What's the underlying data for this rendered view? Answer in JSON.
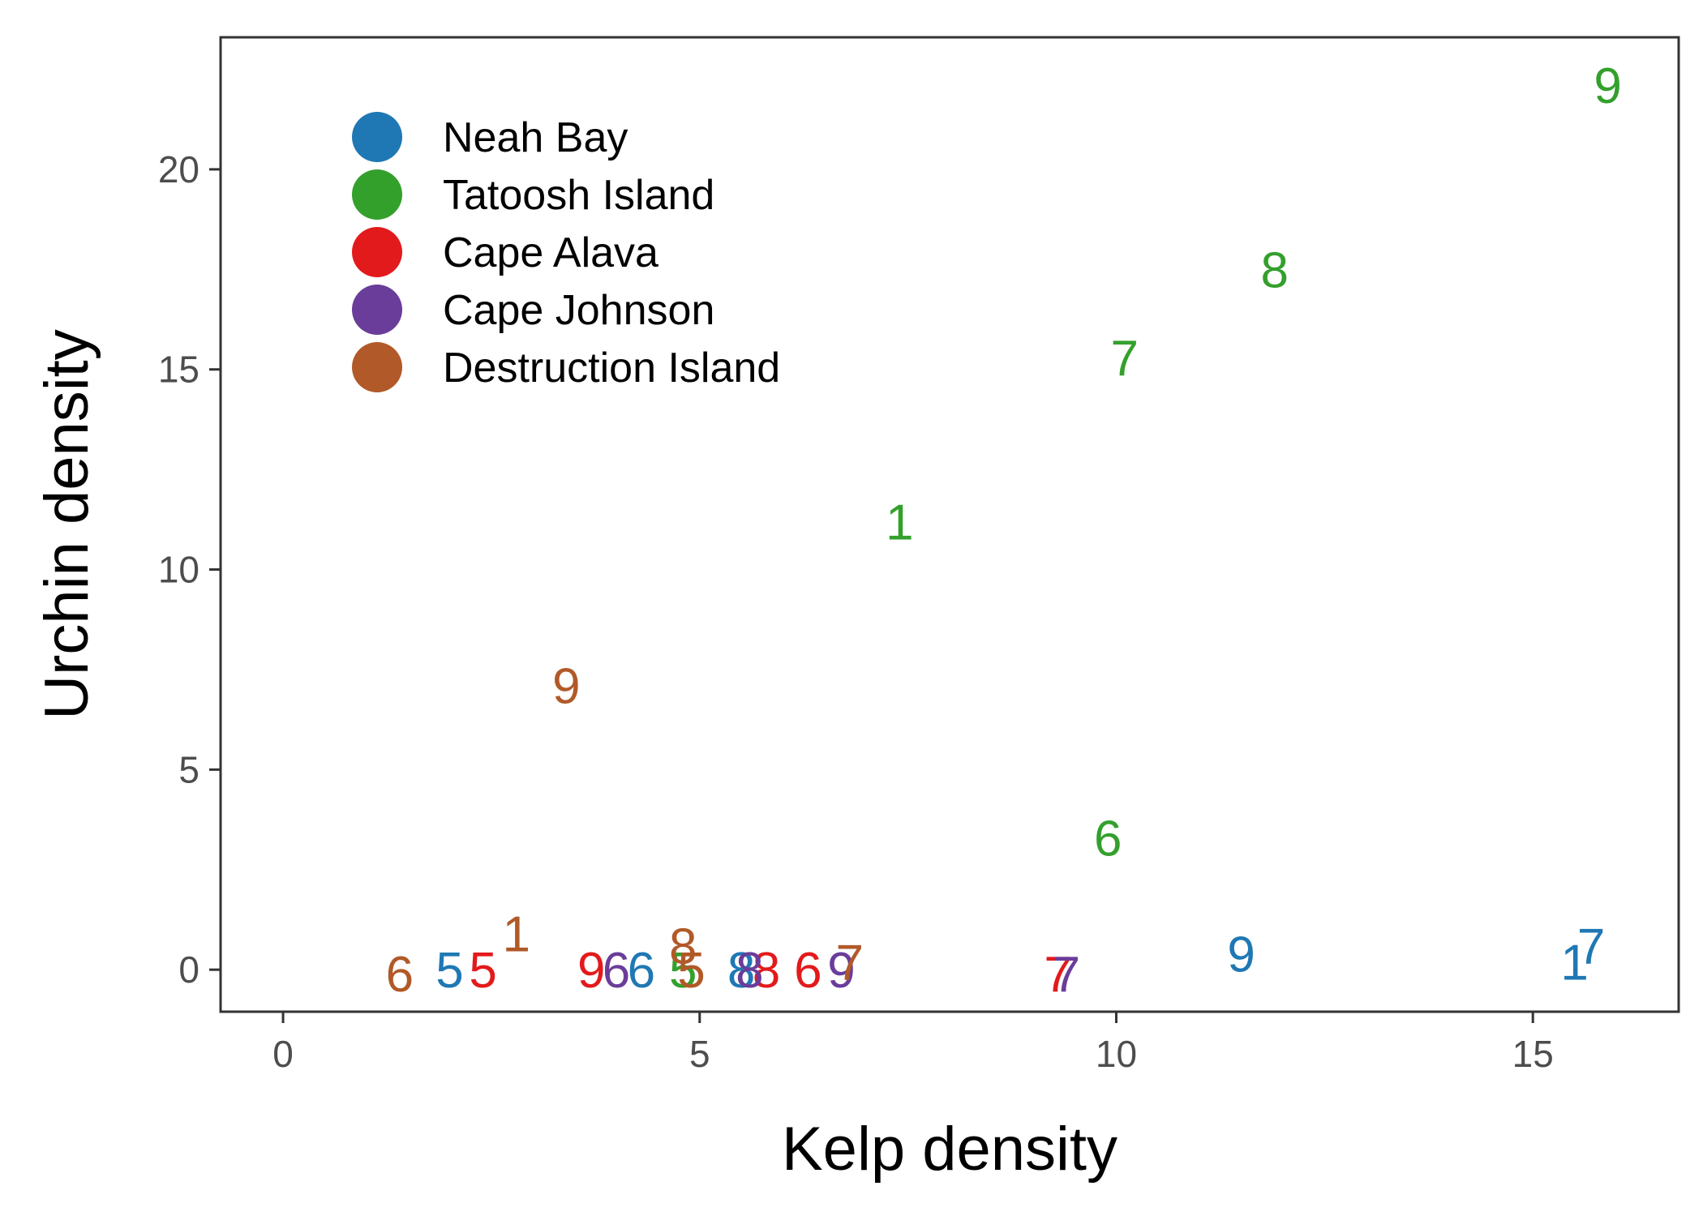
{
  "chart_data": {
    "type": "scatter",
    "title": "",
    "xlabel": "Kelp density",
    "ylabel": "Urchin density",
    "xlim": [
      -0.75,
      16.75
    ],
    "ylim": [
      -1.05,
      23.3
    ],
    "xticks": [
      0,
      5,
      10,
      15
    ],
    "yticks": [
      0,
      5,
      10,
      15,
      20
    ],
    "grid": false,
    "legend_position": "top-left",
    "point_style": "text labels",
    "series": [
      {
        "name": "Neah Bay",
        "color": "#1f78b4",
        "points": [
          {
            "x": 2.0,
            "y": 0.0,
            "label": "5"
          },
          {
            "x": 4.3,
            "y": 0.0,
            "label": "6"
          },
          {
            "x": 5.5,
            "y": 0.0,
            "label": "8"
          },
          {
            "x": 11.5,
            "y": 0.4,
            "label": "9"
          },
          {
            "x": 15.5,
            "y": 0.2,
            "label": "1"
          },
          {
            "x": 15.7,
            "y": 0.6,
            "label": "7"
          }
        ]
      },
      {
        "name": "Tatoosh Island",
        "color": "#33a02c",
        "points": [
          {
            "x": 7.4,
            "y": 11.2,
            "label": "1"
          },
          {
            "x": 9.9,
            "y": 3.3,
            "label": "6"
          },
          {
            "x": 10.1,
            "y": 15.3,
            "label": "7"
          },
          {
            "x": 11.9,
            "y": 17.5,
            "label": "8"
          },
          {
            "x": 15.9,
            "y": 22.1,
            "label": "9"
          },
          {
            "x": 4.8,
            "y": 0.0,
            "label": "5"
          }
        ]
      },
      {
        "name": "Cape Alava",
        "color": "#e31a1c",
        "points": [
          {
            "x": 2.4,
            "y": 0.0,
            "label": "5"
          },
          {
            "x": 3.7,
            "y": 0.0,
            "label": "9"
          },
          {
            "x": 5.8,
            "y": 0.0,
            "label": "8"
          },
          {
            "x": 6.3,
            "y": 0.0,
            "label": "6"
          },
          {
            "x": 9.3,
            "y": -0.1,
            "label": "7"
          }
        ]
      },
      {
        "name": "Cape Johnson",
        "color": "#6a3d9a",
        "points": [
          {
            "x": 4.0,
            "y": 0.0,
            "label": "6"
          },
          {
            "x": 5.6,
            "y": 0.0,
            "label": "8"
          },
          {
            "x": 6.7,
            "y": 0.0,
            "label": "9"
          },
          {
            "x": 9.4,
            "y": -0.1,
            "label": "7"
          }
        ]
      },
      {
        "name": "Destruction Island",
        "color": "#b15928",
        "points": [
          {
            "x": 1.4,
            "y": -0.1,
            "label": "6"
          },
          {
            "x": 2.8,
            "y": 0.9,
            "label": "1"
          },
          {
            "x": 3.4,
            "y": 7.1,
            "label": "9"
          },
          {
            "x": 4.9,
            "y": 0.0,
            "label": "5"
          },
          {
            "x": 4.8,
            "y": 0.6,
            "label": "8"
          },
          {
            "x": 6.8,
            "y": 0.2,
            "label": "7"
          }
        ]
      }
    ]
  }
}
